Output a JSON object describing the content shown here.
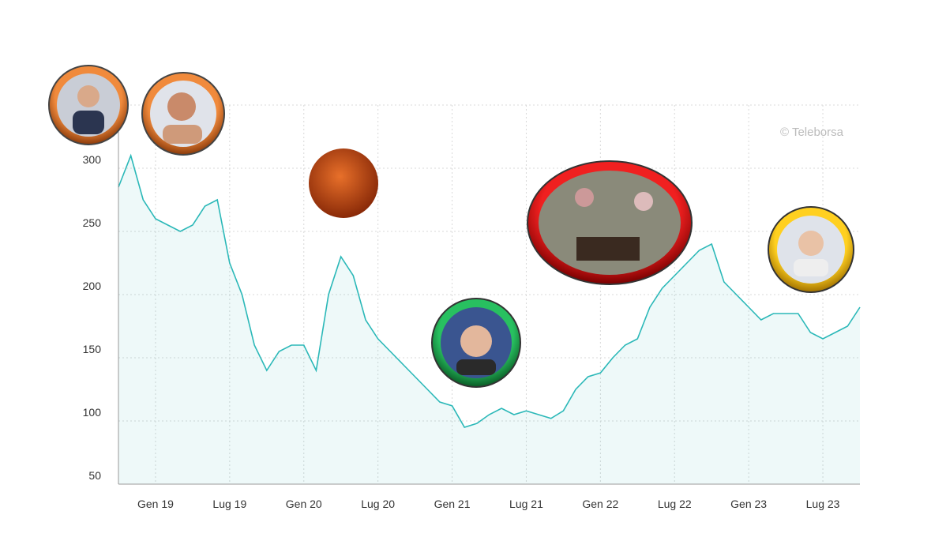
{
  "chart_data": {
    "type": "line",
    "watermark": "© Teleborsa",
    "categories": [
      null,
      null,
      null,
      "Gen 19",
      null,
      null,
      null,
      null,
      null,
      "Lug 19",
      null,
      null,
      null,
      null,
      null,
      "Gen 20",
      null,
      null,
      null,
      null,
      null,
      "Lug 20",
      null,
      null,
      null,
      null,
      null,
      "Gen 21",
      null,
      null,
      null,
      null,
      null,
      "Lug 21",
      null,
      null,
      null,
      null,
      null,
      "Gen 22",
      null,
      null,
      null,
      null,
      null,
      "Lug 22",
      null,
      null,
      null,
      null,
      null,
      "Gen 23",
      null,
      null,
      null,
      null,
      null,
      "Lug 23",
      null,
      null,
      null
    ],
    "series": [
      {
        "color": "#2bb8b8",
        "values": [
          285,
          310,
          275,
          260,
          255,
          250,
          255,
          270,
          275,
          225,
          200,
          160,
          140,
          155,
          160,
          160,
          140,
          200,
          230,
          215,
          180,
          165,
          155,
          145,
          135,
          125,
          115,
          112,
          95,
          98,
          105,
          110,
          105,
          108,
          105,
          102,
          108,
          125,
          135,
          138,
          150,
          160,
          165,
          190,
          205,
          215,
          225,
          235,
          240,
          210,
          200,
          190,
          180,
          185,
          185,
          185,
          170,
          165,
          170,
          175,
          190
        ]
      }
    ],
    "ylim": [
      50,
      350
    ],
    "yticks": [
      50,
      100,
      150,
      200,
      250,
      300
    ],
    "grid": true
  }
}
